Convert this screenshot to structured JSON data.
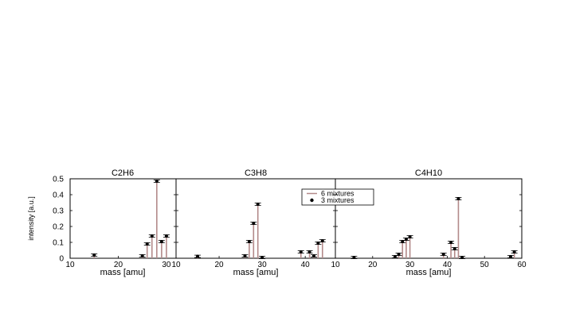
{
  "chart_data": [
    {
      "type": "bar",
      "title": "C2H6",
      "xlabel": "mass [amu]",
      "ylabel": "intensity [a.u.]",
      "xlim": [
        10,
        32
      ],
      "ylim": [
        0,
        0.5
      ],
      "xticks": [
        "10",
        "20",
        "30"
      ],
      "yticks": [
        "0",
        "0.1",
        "0.2",
        "0.3",
        "0.4",
        "0.5"
      ],
      "series": [
        {
          "name": "6 mixtures",
          "x": [
            15,
            25,
            26,
            27,
            28,
            29,
            30
          ],
          "values": [
            0.02,
            0.015,
            0.09,
            0.14,
            0.49,
            0.105,
            0.14
          ]
        },
        {
          "name": "3 mixtures",
          "x": [
            15,
            25,
            26,
            27,
            28,
            29,
            30
          ],
          "values": [
            0.02,
            0.015,
            0.09,
            0.14,
            0.485,
            0.105,
            0.14
          ]
        }
      ]
    },
    {
      "type": "bar",
      "title": "C3H8",
      "xlabel": "mass [amu]",
      "xlim": [
        10,
        47
      ],
      "ylim": [
        0,
        0.5
      ],
      "xticks": [
        "10",
        "20",
        "30",
        "40"
      ],
      "series": [
        {
          "name": "6 mixtures",
          "x": [
            15,
            26,
            27,
            28,
            29,
            30,
            39,
            41,
            42,
            43,
            44
          ],
          "values": [
            0.012,
            0.015,
            0.105,
            0.22,
            0.34,
            0.005,
            0.04,
            0.04,
            0.015,
            0.095,
            0.11
          ]
        },
        {
          "name": "3 mixtures",
          "x": [
            15,
            26,
            27,
            28,
            29,
            30,
            39,
            41,
            42,
            43,
            44
          ],
          "values": [
            0.012,
            0.015,
            0.105,
            0.22,
            0.34,
            0.005,
            0.04,
            0.04,
            0.015,
            0.095,
            0.11
          ]
        }
      ]
    },
    {
      "type": "bar",
      "title": "C4H10",
      "xlabel": "mass [amu]",
      "xlim": [
        10,
        60
      ],
      "ylim": [
        0,
        0.5
      ],
      "xticks": [
        "10",
        "20",
        "30",
        "40",
        "50",
        "60"
      ],
      "series": [
        {
          "name": "6 mixtures",
          "x": [
            15,
            26,
            27,
            28,
            29,
            30,
            39,
            41,
            42,
            43,
            44,
            57,
            58
          ],
          "values": [
            0.005,
            0.01,
            0.025,
            0.105,
            0.12,
            0.135,
            0.025,
            0.1,
            0.06,
            0.38,
            0.005,
            0.01,
            0.04
          ]
        },
        {
          "name": "3 mixtures",
          "x": [
            15,
            26,
            27,
            28,
            29,
            30,
            39,
            41,
            42,
            43,
            44,
            57,
            58
          ],
          "values": [
            0.005,
            0.01,
            0.025,
            0.105,
            0.12,
            0.135,
            0.025,
            0.1,
            0.06,
            0.375,
            0.005,
            0.01,
            0.04
          ]
        }
      ]
    }
  ],
  "legend": {
    "placement": "top-left of third panel",
    "items": [
      {
        "label": "6 mixtures",
        "color": "#b38a8a"
      },
      {
        "label": "3 mixtures",
        "color": "#000000"
      }
    ]
  },
  "colors": {
    "bar": "#b38a8a",
    "marker": "#000000"
  }
}
